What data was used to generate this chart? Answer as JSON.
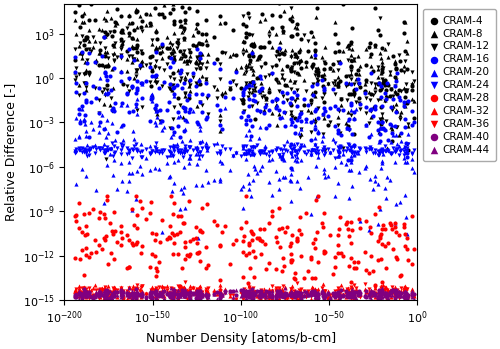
{
  "xlabel": "Number Density [atoms/b-cm]",
  "ylabel": "Relative Difference [-]",
  "series": [
    {
      "name": "CRAM-4",
      "color": "#000000",
      "marker": "o",
      "order": 4,
      "base": 3.5,
      "spread": 1.8,
      "trend": -3.5,
      "ymin": -14.9,
      "ymax": 5.3
    },
    {
      "name": "CRAM-8",
      "color": "#000000",
      "marker": "^",
      "order": 8,
      "base": 2.5,
      "spread": 1.8,
      "trend": -3.0,
      "ymin": -14.9,
      "ymax": 5.3
    },
    {
      "name": "CRAM-12",
      "color": "#000000",
      "marker": "v",
      "order": 12,
      "base": 1.0,
      "spread": 1.8,
      "trend": -2.5,
      "ymin": -14.9,
      "ymax": 5.3
    },
    {
      "name": "CRAM-16",
      "color": "#0000ff",
      "marker": "o",
      "order": 16,
      "base": -0.5,
      "spread": 1.5,
      "trend": -2.0,
      "ymin": -14.9,
      "ymax": 5.3
    },
    {
      "name": "CRAM-20",
      "color": "#0000ff",
      "marker": "^",
      "order": 20,
      "base": -4.5,
      "spread": 2.0,
      "trend": -1.5,
      "ymin": -14.9,
      "ymax": 5.3
    },
    {
      "name": "CRAM-24",
      "color": "#0000ff",
      "marker": "v",
      "order": 24,
      "base": -4.9,
      "spread": 0.2,
      "trend": 0.0,
      "ymin": -14.9,
      "ymax": -4.4
    },
    {
      "name": "CRAM-28",
      "color": "#ff0000",
      "marker": "o",
      "order": 28,
      "base": -10.5,
      "spread": 1.5,
      "trend": -1.0,
      "ymin": -14.9,
      "ymax": -8.0
    },
    {
      "name": "CRAM-32",
      "color": "#ff0000",
      "marker": "^",
      "order": 32,
      "base": -14.5,
      "spread": 0.25,
      "trend": 0.0,
      "ymin": -14.95,
      "ymax": -13.8
    },
    {
      "name": "CRAM-36",
      "color": "#ff0000",
      "marker": "v",
      "order": 36,
      "base": -14.5,
      "spread": 0.25,
      "trend": 0.0,
      "ymin": -14.95,
      "ymax": -13.8
    },
    {
      "name": "CRAM-40",
      "color": "#800080",
      "marker": "o",
      "order": 40,
      "base": -14.6,
      "spread": 0.15,
      "trend": 0.0,
      "ymin": -14.95,
      "ymax": -14.2
    },
    {
      "name": "CRAM-44",
      "color": "#800080",
      "marker": "^",
      "order": 44,
      "base": -14.6,
      "spread": 0.15,
      "trend": 0.0,
      "ymin": -14.95,
      "ymax": -14.2
    }
  ],
  "n_nuclides": 297,
  "markersize": 3,
  "figsize": [
    5.0,
    3.49
  ],
  "dpi": 100,
  "legend_fontsize": 7.5,
  "axis_fontsize": 9,
  "tick_fontsize": 8,
  "xlim": [
    -200,
    0
  ],
  "ylim": [
    -15,
    5
  ]
}
